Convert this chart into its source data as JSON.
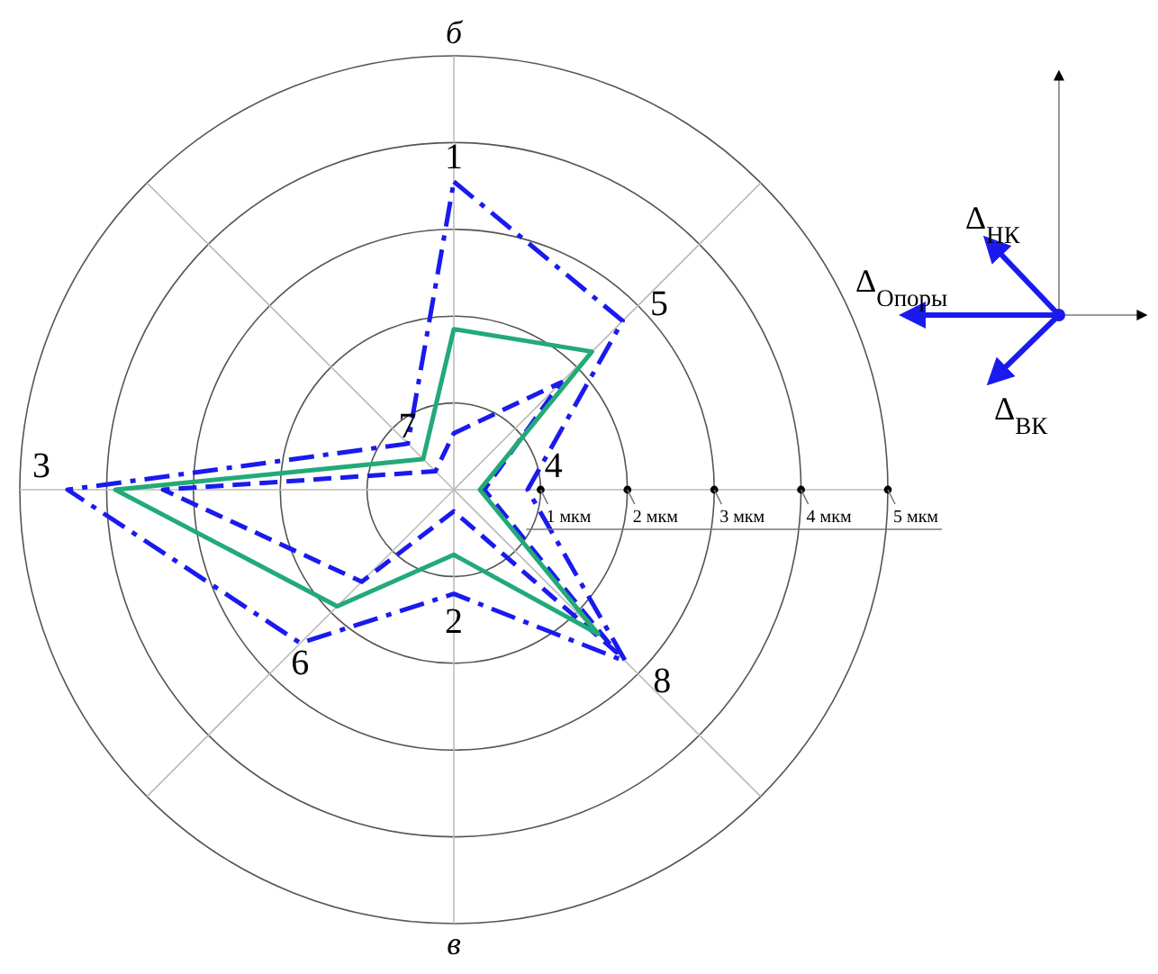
{
  "chart_data": {
    "type": "radar",
    "categories": [
      "1",
      "5",
      "4",
      "8",
      "2",
      "6",
      "3",
      "7"
    ],
    "ylim": [
      0,
      5
    ],
    "yticks": [
      {
        "value": 1,
        "label": "1 мкм"
      },
      {
        "value": 2,
        "label": "2 мкм"
      },
      {
        "value": 3,
        "label": "3 мкм"
      },
      {
        "value": 4,
        "label": "4 мкм"
      },
      {
        "value": 5,
        "label": "5 мкм"
      }
    ],
    "grid": true,
    "series": [
      {
        "color": "#1a1aee",
        "line_style": "dashdot",
        "values": [
          3.55,
          2.75,
          0.85,
          2.8,
          1.2,
          2.5,
          4.45,
          0.75
        ]
      },
      {
        "color": "#1a1aee",
        "line_style": "dashed",
        "values": [
          0.65,
          1.75,
          0.35,
          2.65,
          0.25,
          1.5,
          3.35,
          0.3
        ]
      },
      {
        "color": "#22aa77",
        "line_style": "solid",
        "values": [
          1.85,
          2.25,
          0.3,
          2.35,
          0.75,
          1.9,
          3.9,
          0.5
        ]
      }
    ],
    "annotations": [
      "б",
      "в",
      "Δ$_{НК}$",
      "Δ$_{Опоры}$",
      "Δ$_{ВК}$"
    ]
  }
}
